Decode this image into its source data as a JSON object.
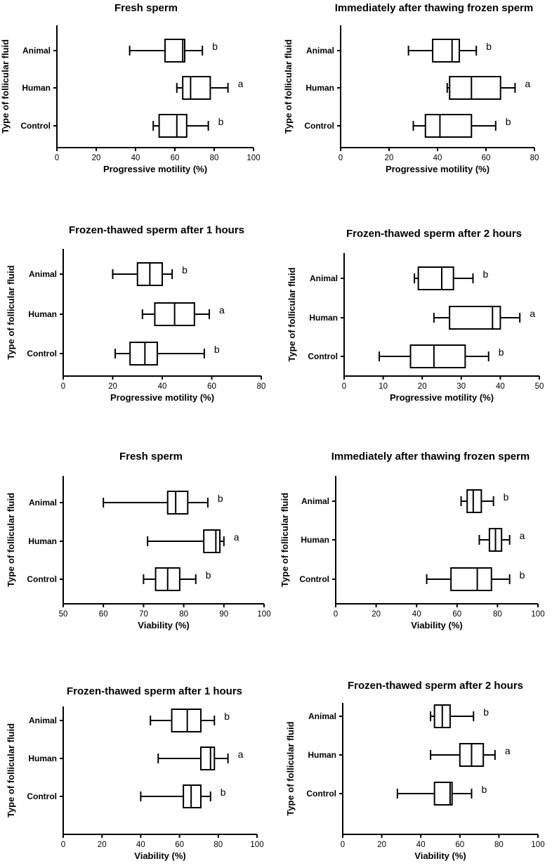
{
  "figure": {
    "y_axis_label": "Type of follicular fluid"
  },
  "chart_data": [
    {
      "type": "box",
      "title": "Fresh sperm",
      "xlabel": "Progressive motility (%)",
      "ylabel": "Type of follicular fluid",
      "xlim": [
        0,
        100
      ],
      "xticks": [
        0,
        20,
        40,
        60,
        80,
        100
      ],
      "categories": [
        "Animal",
        "Human",
        "Control"
      ],
      "boxes": [
        {
          "category": "Animal",
          "min": 37,
          "q1": 55,
          "median": 64,
          "q3": 65,
          "max": 74,
          "label": "b"
        },
        {
          "category": "Human",
          "min": 61,
          "q1": 64,
          "median": 68,
          "q3": 78,
          "max": 87,
          "label": "a"
        },
        {
          "category": "Control",
          "min": 49,
          "q1": 52,
          "median": 61,
          "q3": 66,
          "max": 77,
          "label": "b"
        }
      ]
    },
    {
      "type": "box",
      "title": "Immediately after thawing frozen sperm",
      "xlabel": "Progressive motility (%)",
      "ylabel": "Type of follicular fluid",
      "xlim": [
        0,
        80
      ],
      "xticks": [
        0,
        20,
        40,
        60,
        80
      ],
      "categories": [
        "Animal",
        "Human",
        "Control"
      ],
      "boxes": [
        {
          "category": "Animal",
          "min": 28,
          "q1": 38,
          "median": 46,
          "q3": 49,
          "max": 56,
          "label": "b"
        },
        {
          "category": "Human",
          "min": 44,
          "q1": 45,
          "median": 54,
          "q3": 66,
          "max": 72,
          "label": "a"
        },
        {
          "category": "Control",
          "min": 30,
          "q1": 35,
          "median": 41,
          "q3": 54,
          "max": 64,
          "label": "b"
        }
      ]
    },
    {
      "type": "box",
      "title": "Frozen-thawed sperm after 1 hours",
      "xlabel": "Progressive motility (%)",
      "ylabel": "Type of follicular fluid",
      "xlim": [
        0,
        80
      ],
      "xticks": [
        0,
        20,
        40,
        60,
        80
      ],
      "categories": [
        "Animal",
        "Human",
        "Control"
      ],
      "boxes": [
        {
          "category": "Animal",
          "min": 20,
          "q1": 30,
          "median": 35,
          "q3": 40,
          "max": 44,
          "label": "b"
        },
        {
          "category": "Human",
          "min": 32,
          "q1": 37,
          "median": 45,
          "q3": 53,
          "max": 59,
          "label": "a"
        },
        {
          "category": "Control",
          "min": 21,
          "q1": 27,
          "median": 33,
          "q3": 38,
          "max": 57,
          "label": "b"
        }
      ]
    },
    {
      "type": "box",
      "title": "Frozen-thawed sperm after 2 hours",
      "xlabel": "Progressive motility (%)",
      "ylabel": "Type of follicular fluid",
      "xlim": [
        0,
        50
      ],
      "xticks": [
        0,
        10,
        20,
        30,
        40,
        50
      ],
      "categories": [
        "Animal",
        "Human",
        "Control"
      ],
      "boxes": [
        {
          "category": "Animal",
          "min": 18,
          "q1": 19,
          "median": 25,
          "q3": 28,
          "max": 33,
          "label": "b"
        },
        {
          "category": "Human",
          "min": 23,
          "q1": 27,
          "median": 38,
          "q3": 40,
          "max": 45,
          "label": "a"
        },
        {
          "category": "Control",
          "min": 9,
          "q1": 17,
          "median": 23,
          "q3": 31,
          "max": 37,
          "label": "b"
        }
      ]
    },
    {
      "type": "box",
      "title": "Fresh sperm",
      "xlabel": "Viability (%)",
      "ylabel": "Type of follicular fluid",
      "xlim": [
        50,
        100
      ],
      "xticks": [
        50,
        60,
        70,
        80,
        90,
        100
      ],
      "categories": [
        "Animal",
        "Human",
        "Control"
      ],
      "boxes": [
        {
          "category": "Animal",
          "min": 60,
          "q1": 76,
          "median": 78,
          "q3": 81,
          "max": 86,
          "label": "b"
        },
        {
          "category": "Human",
          "min": 71,
          "q1": 85,
          "median": 88,
          "q3": 89,
          "max": 90,
          "label": "a"
        },
        {
          "category": "Control",
          "min": 70,
          "q1": 73,
          "median": 76,
          "q3": 79,
          "max": 83,
          "label": "b"
        }
      ]
    },
    {
      "type": "box",
      "title": "Immediately after thawing frozen sperm",
      "xlabel": "Viability (%)",
      "ylabel": "Type of follicular fluid",
      "xlim": [
        0,
        100
      ],
      "xticks": [
        0,
        20,
        40,
        60,
        80,
        100
      ],
      "categories": [
        "Animal",
        "Human",
        "Control"
      ],
      "boxes": [
        {
          "category": "Animal",
          "min": 62,
          "q1": 65,
          "median": 68,
          "q3": 72,
          "max": 78,
          "label": "b"
        },
        {
          "category": "Human",
          "min": 71,
          "q1": 76,
          "median": 79,
          "q3": 82,
          "max": 86,
          "label": "a"
        },
        {
          "category": "Control",
          "min": 45,
          "q1": 57,
          "median": 70,
          "q3": 77,
          "max": 86,
          "label": "b"
        }
      ]
    },
    {
      "type": "box",
      "title": "Frozen-thawed sperm after 1 hours",
      "xlabel": "Viability (%)",
      "ylabel": "Type of follicular fluid",
      "xlim": [
        0,
        100
      ],
      "xticks": [
        0,
        20,
        40,
        60,
        80,
        100
      ],
      "categories": [
        "Animal",
        "Human",
        "Control"
      ],
      "boxes": [
        {
          "category": "Animal",
          "min": 45,
          "q1": 56,
          "median": 64,
          "q3": 71,
          "max": 78,
          "label": "b"
        },
        {
          "category": "Human",
          "min": 49,
          "q1": 71,
          "median": 76,
          "q3": 78,
          "max": 85,
          "label": "a"
        },
        {
          "category": "Control",
          "min": 40,
          "q1": 62,
          "median": 66,
          "q3": 71,
          "max": 76,
          "label": "b"
        }
      ]
    },
    {
      "type": "box",
      "title": "Frozen-thawed sperm after 2 hours",
      "xlabel": "Viability (%)",
      "ylabel": "Type of follicular fluid",
      "xlim": [
        0,
        100
      ],
      "xticks": [
        0,
        20,
        40,
        60,
        80,
        100
      ],
      "categories": [
        "Animal",
        "Human",
        "Control"
      ],
      "boxes": [
        {
          "category": "Animal",
          "min": 45,
          "q1": 47,
          "median": 51,
          "q3": 55,
          "max": 67,
          "label": "b"
        },
        {
          "category": "Human",
          "min": 45,
          "q1": 60,
          "median": 66,
          "q3": 72,
          "max": 78,
          "label": "a"
        },
        {
          "category": "Control",
          "min": 28,
          "q1": 47,
          "median": 55,
          "q3": 56,
          "max": 66,
          "label": "b"
        }
      ]
    }
  ]
}
